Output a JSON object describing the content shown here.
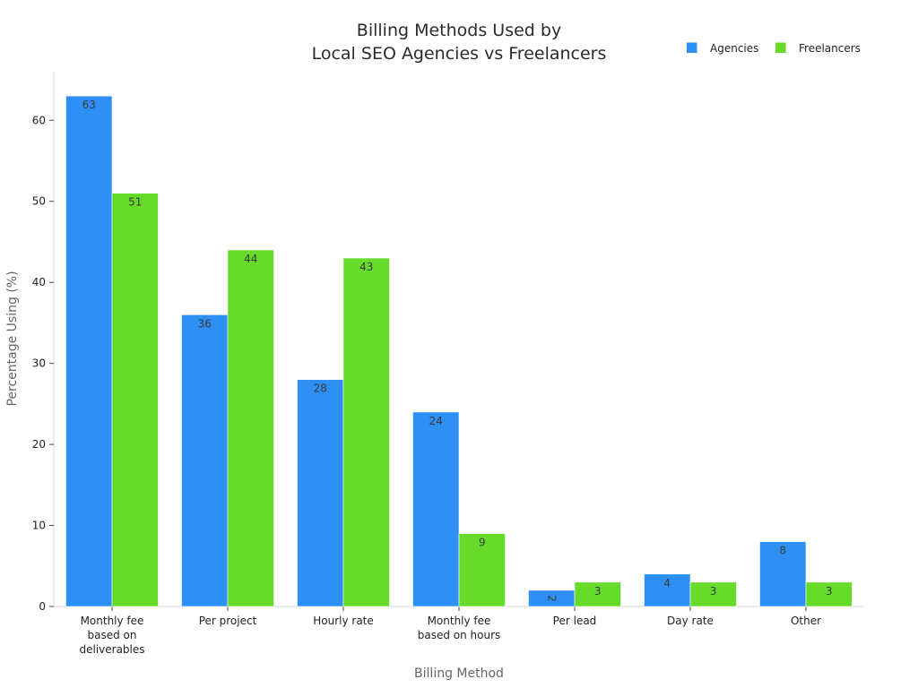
{
  "chart_data": {
    "type": "bar",
    "title": "Billing Methods Used by\nLocal SEO Agencies vs Freelancers",
    "title_lines": [
      "Billing Methods Used by",
      "Local SEO Agencies vs Freelancers"
    ],
    "xlabel": "Billing Method",
    "ylabel": "Percentage Using (%)",
    "categories": [
      "Monthly fee based on deliverables",
      "Per project",
      "Hourly rate",
      "Monthly fee based on hours",
      "Per lead",
      "Day rate",
      "Other"
    ],
    "category_label_lines": [
      [
        "Monthly fee",
        "based on",
        "deliverables"
      ],
      [
        "Per project"
      ],
      [
        "Hourly rate"
      ],
      [
        "Monthly fee",
        "based on hours"
      ],
      [
        "Per lead"
      ],
      [
        "Day rate"
      ],
      [
        "Other"
      ]
    ],
    "series": [
      {
        "name": "Agencies",
        "color": "#2e90f5",
        "values": [
          63,
          36,
          28,
          24,
          2,
          4,
          8
        ]
      },
      {
        "name": "Freelancers",
        "color": "#66db2a",
        "values": [
          51,
          44,
          43,
          9,
          3,
          3,
          3
        ]
      }
    ],
    "ylim": [
      0,
      66
    ],
    "yticks": [
      0,
      10,
      20,
      30,
      40,
      50,
      60
    ],
    "legend_position": "top-right",
    "grid": false
  }
}
